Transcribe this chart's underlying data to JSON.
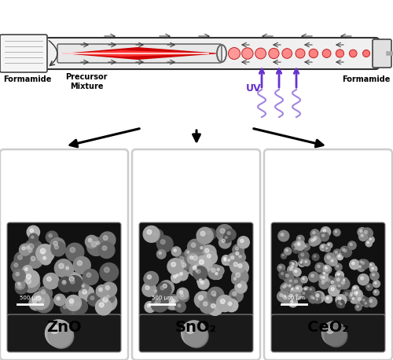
{
  "labels": [
    "ZnO",
    "SnO₂",
    "CeO₂"
  ],
  "scale_bar_text": "500 μm",
  "formamide_label": "Formamide",
  "precursor_label": "Precursor\nMixture",
  "uv_label": "UV",
  "bg_color": "#ffffff",
  "uv_color": "#6633cc",
  "red_flame": "#dd0000",
  "bead_color": "#ff5555",
  "tube_edge": "#333333",
  "arrow_color": "#111111"
}
